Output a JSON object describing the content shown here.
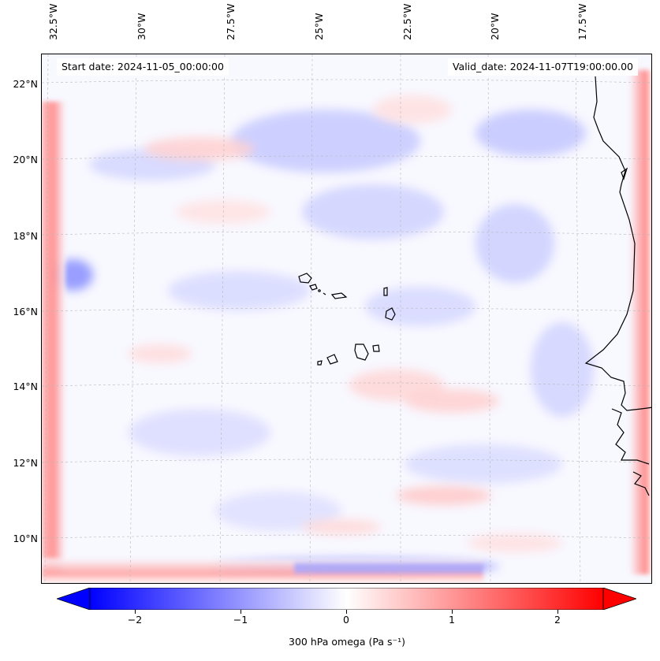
{
  "map": {
    "start_date_text": "Start date: 2024-11-05_00:00:00",
    "valid_date_text": "Valid_date: 2024-11-07T19:00:00.00",
    "longitude_labels": [
      "32.5°W",
      "30°W",
      "27.5°W",
      "25°W",
      "22.5°W",
      "20°W",
      "17.5°W"
    ],
    "latitude_labels": [
      "22°N",
      "20°N",
      "18°N",
      "16°N",
      "14°N",
      "12°N",
      "10°N"
    ],
    "field": "300 hPa omega",
    "colormap": "bwr",
    "colors": {
      "negative": "#0000ff",
      "zero": "#ffffff",
      "positive": "#ff0000",
      "coastline": "#000000",
      "grid": "#b0b0b0"
    }
  },
  "colorbar": {
    "label": "300 hPa omega (Pa s⁻¹)",
    "ticks": [
      "−2",
      "−1",
      "0",
      "1",
      "2"
    ],
    "tick_values": [
      -2,
      -1,
      0,
      1,
      2
    ],
    "range": [
      -2.5,
      2.5
    ],
    "extend": "both"
  }
}
